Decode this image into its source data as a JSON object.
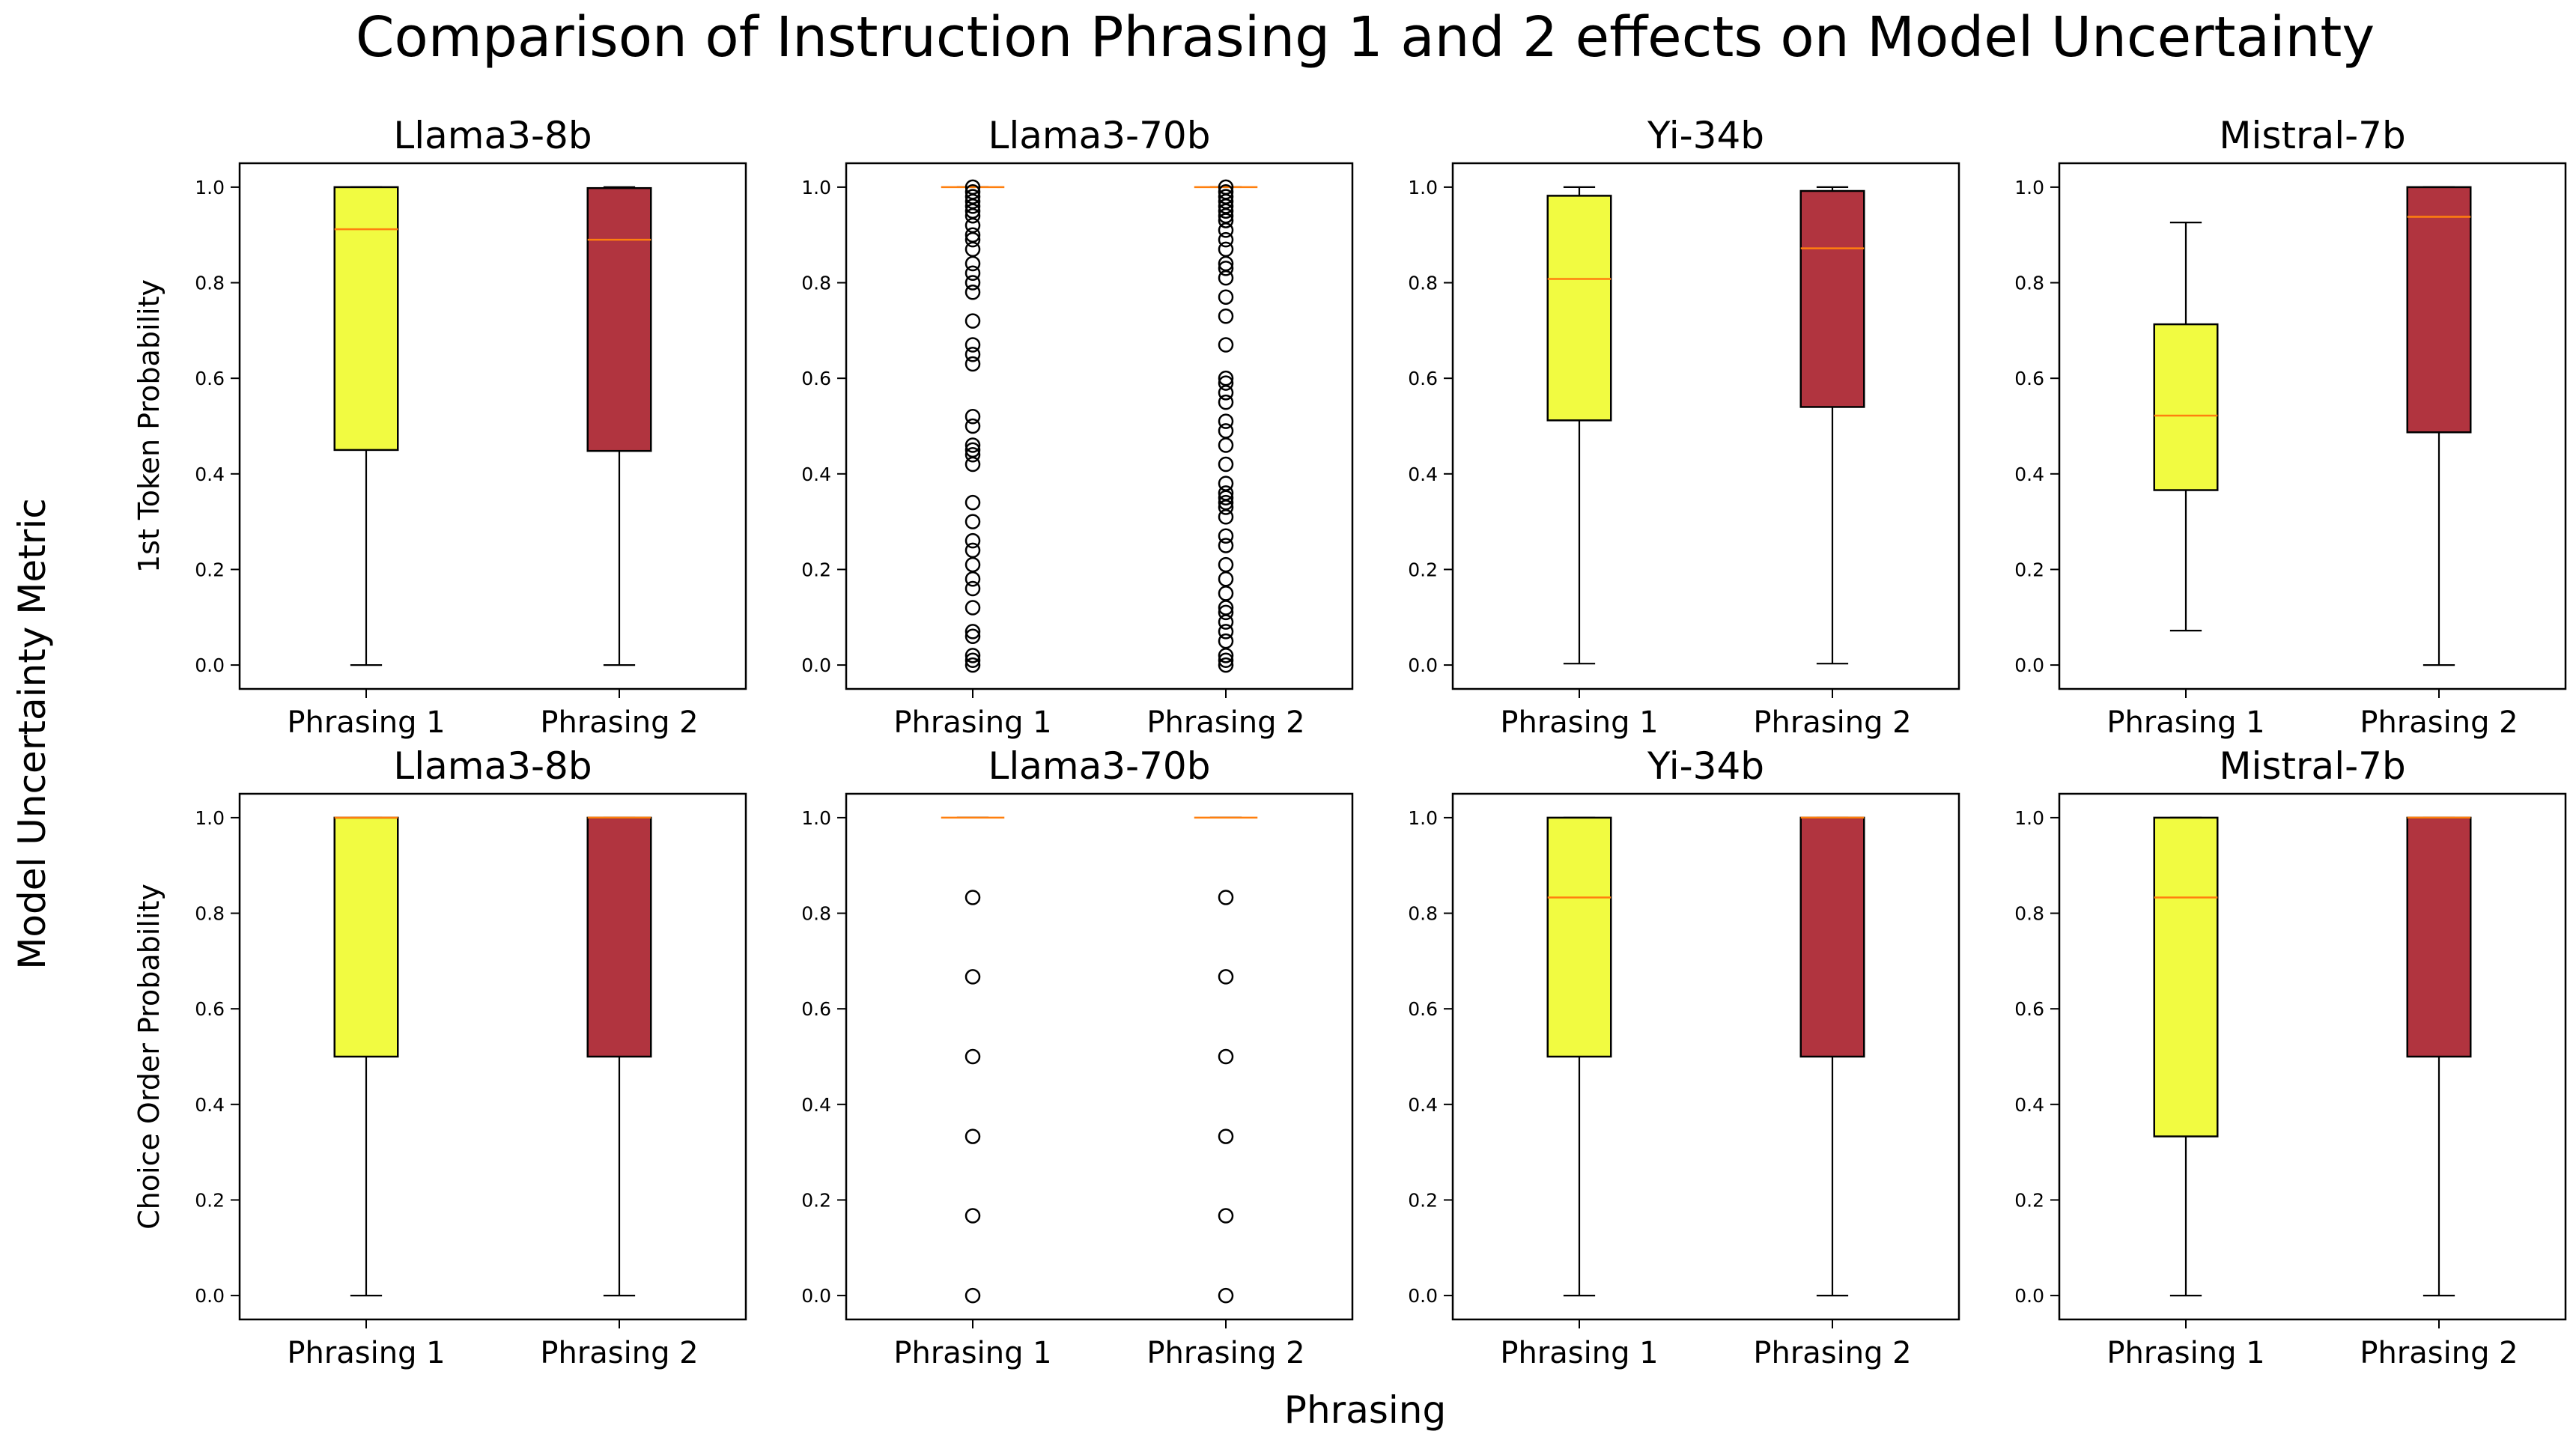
{
  "figure": {
    "title": "Comparison of Instruction Phrasing 1 and 2 effects on Model Uncertainty",
    "xlabel": "Phrasing",
    "ylabel": "Model Uncertainty Metric",
    "row_labels": [
      "1st Token Probability",
      "Choice Order Probability"
    ],
    "colors": {
      "phrasing1_fill": "#f1fb41",
      "phrasing2_fill": "#b1343f",
      "median": "#ff7f0e",
      "edge": "#000000"
    }
  },
  "chart_data": [
    {
      "type": "box",
      "row": 0,
      "col": 0,
      "title": "Llama3-8b",
      "ylabel": "1st Token Probability",
      "categories": [
        "Phrasing 1",
        "Phrasing 2"
      ],
      "ylim": [
        -0.05,
        1.05
      ],
      "yticks": [
        "0.0",
        "0.2",
        "0.4",
        "0.6",
        "0.8",
        "1.0"
      ],
      "series": [
        {
          "name": "Phrasing 1",
          "whisker_low": 0.0,
          "q1": 0.45,
          "median": 0.912,
          "q3": 1.0,
          "whisker_high": 1.0,
          "outliers": []
        },
        {
          "name": "Phrasing 2",
          "whisker_low": 0.0,
          "q1": 0.448,
          "median": 0.89,
          "q3": 0.998,
          "whisker_high": 1.0,
          "outliers": []
        }
      ]
    },
    {
      "type": "box",
      "row": 0,
      "col": 1,
      "title": "Llama3-70b",
      "ylabel": "",
      "categories": [
        "Phrasing 1",
        "Phrasing 2"
      ],
      "ylim": [
        -0.05,
        1.05
      ],
      "yticks": [
        "0.0",
        "0.2",
        "0.4",
        "0.6",
        "0.8",
        "1.0"
      ],
      "series": [
        {
          "name": "Phrasing 1",
          "whisker_low": 1.0,
          "q1": 1.0,
          "median": 1.0,
          "q3": 1.0,
          "whisker_high": 1.0,
          "outliers": [
            0.0,
            0.01,
            0.02,
            0.06,
            0.07,
            0.12,
            0.16,
            0.18,
            0.21,
            0.24,
            0.26,
            0.3,
            0.34,
            0.42,
            0.44,
            0.45,
            0.46,
            0.5,
            0.52,
            0.63,
            0.65,
            0.67,
            0.72,
            0.78,
            0.8,
            0.82,
            0.84,
            0.87,
            0.89,
            0.9,
            0.92,
            0.94,
            0.95,
            0.96,
            0.97,
            0.98,
            0.99,
            1.0
          ]
        },
        {
          "name": "Phrasing 2",
          "whisker_low": 1.0,
          "q1": 1.0,
          "median": 1.0,
          "q3": 1.0,
          "whisker_high": 1.0,
          "outliers": [
            0.0,
            0.01,
            0.02,
            0.05,
            0.07,
            0.09,
            0.11,
            0.12,
            0.15,
            0.18,
            0.21,
            0.25,
            0.27,
            0.31,
            0.33,
            0.34,
            0.35,
            0.36,
            0.38,
            0.42,
            0.46,
            0.49,
            0.51,
            0.55,
            0.57,
            0.59,
            0.6,
            0.67,
            0.73,
            0.77,
            0.81,
            0.83,
            0.84,
            0.87,
            0.89,
            0.91,
            0.93,
            0.94,
            0.95,
            0.96,
            0.97,
            0.98,
            0.99,
            1.0
          ]
        }
      ]
    },
    {
      "type": "box",
      "row": 0,
      "col": 2,
      "title": "Yi-34b",
      "ylabel": "",
      "categories": [
        "Phrasing 1",
        "Phrasing 2"
      ],
      "ylim": [
        -0.05,
        1.05
      ],
      "yticks": [
        "0.0",
        "0.2",
        "0.4",
        "0.6",
        "0.8",
        "1.0"
      ],
      "series": [
        {
          "name": "Phrasing 1",
          "whisker_low": 0.003,
          "q1": 0.512,
          "median": 0.808,
          "q3": 0.982,
          "whisker_high": 1.0,
          "outliers": []
        },
        {
          "name": "Phrasing 2",
          "whisker_low": 0.003,
          "q1": 0.54,
          "median": 0.872,
          "q3": 0.992,
          "whisker_high": 1.0,
          "outliers": []
        }
      ]
    },
    {
      "type": "box",
      "row": 0,
      "col": 3,
      "title": "Mistral-7b",
      "ylabel": "",
      "categories": [
        "Phrasing 1",
        "Phrasing 2"
      ],
      "ylim": [
        -0.05,
        1.05
      ],
      "yticks": [
        "0.0",
        "0.2",
        "0.4",
        "0.6",
        "0.8",
        "1.0"
      ],
      "series": [
        {
          "name": "Phrasing 1",
          "whisker_low": 0.072,
          "q1": 0.366,
          "median": 0.522,
          "q3": 0.713,
          "whisker_high": 0.926,
          "outliers": []
        },
        {
          "name": "Phrasing 2",
          "whisker_low": 0.0,
          "q1": 0.487,
          "median": 0.938,
          "q3": 1.0,
          "whisker_high": 1.0,
          "outliers": []
        }
      ]
    },
    {
      "type": "box",
      "row": 1,
      "col": 0,
      "title": "Llama3-8b",
      "ylabel": "Choice Order Probability",
      "categories": [
        "Phrasing 1",
        "Phrasing 2"
      ],
      "ylim": [
        -0.05,
        1.05
      ],
      "yticks": [
        "0.0",
        "0.2",
        "0.4",
        "0.6",
        "0.8",
        "1.0"
      ],
      "series": [
        {
          "name": "Phrasing 1",
          "whisker_low": 0.0,
          "q1": 0.5,
          "median": 1.0,
          "q3": 1.0,
          "whisker_high": 1.0,
          "outliers": []
        },
        {
          "name": "Phrasing 2",
          "whisker_low": 0.0,
          "q1": 0.5,
          "median": 1.0,
          "q3": 1.0,
          "whisker_high": 1.0,
          "outliers": []
        }
      ]
    },
    {
      "type": "box",
      "row": 1,
      "col": 1,
      "title": "Llama3-70b",
      "ylabel": "",
      "categories": [
        "Phrasing 1",
        "Phrasing 2"
      ],
      "ylim": [
        -0.05,
        1.05
      ],
      "yticks": [
        "0.0",
        "0.2",
        "0.4",
        "0.6",
        "0.8",
        "1.0"
      ],
      "series": [
        {
          "name": "Phrasing 1",
          "whisker_low": 1.0,
          "q1": 1.0,
          "median": 1.0,
          "q3": 1.0,
          "whisker_high": 1.0,
          "outliers": [
            0.0,
            0.167,
            0.333,
            0.5,
            0.667,
            0.833
          ]
        },
        {
          "name": "Phrasing 2",
          "whisker_low": 1.0,
          "q1": 1.0,
          "median": 1.0,
          "q3": 1.0,
          "whisker_high": 1.0,
          "outliers": [
            0.0,
            0.167,
            0.333,
            0.5,
            0.667,
            0.833
          ]
        }
      ]
    },
    {
      "type": "box",
      "row": 1,
      "col": 2,
      "title": "Yi-34b",
      "ylabel": "",
      "categories": [
        "Phrasing 1",
        "Phrasing 2"
      ],
      "ylim": [
        -0.05,
        1.05
      ],
      "yticks": [
        "0.0",
        "0.2",
        "0.4",
        "0.6",
        "0.8",
        "1.0"
      ],
      "series": [
        {
          "name": "Phrasing 1",
          "whisker_low": 0.0,
          "q1": 0.5,
          "median": 0.833,
          "q3": 1.0,
          "whisker_high": 1.0,
          "outliers": []
        },
        {
          "name": "Phrasing 2",
          "whisker_low": 0.0,
          "q1": 0.5,
          "median": 1.0,
          "q3": 1.0,
          "whisker_high": 1.0,
          "outliers": []
        }
      ]
    },
    {
      "type": "box",
      "row": 1,
      "col": 3,
      "title": "Mistral-7b",
      "ylabel": "",
      "categories": [
        "Phrasing 1",
        "Phrasing 2"
      ],
      "ylim": [
        -0.05,
        1.05
      ],
      "yticks": [
        "0.0",
        "0.2",
        "0.4",
        "0.6",
        "0.8",
        "1.0"
      ],
      "series": [
        {
          "name": "Phrasing 1",
          "whisker_low": 0.0,
          "q1": 0.333,
          "median": 0.833,
          "q3": 1.0,
          "whisker_high": 1.0,
          "outliers": []
        },
        {
          "name": "Phrasing 2",
          "whisker_low": 0.0,
          "q1": 0.5,
          "median": 1.0,
          "q3": 1.0,
          "whisker_high": 1.0,
          "outliers": []
        }
      ]
    }
  ]
}
